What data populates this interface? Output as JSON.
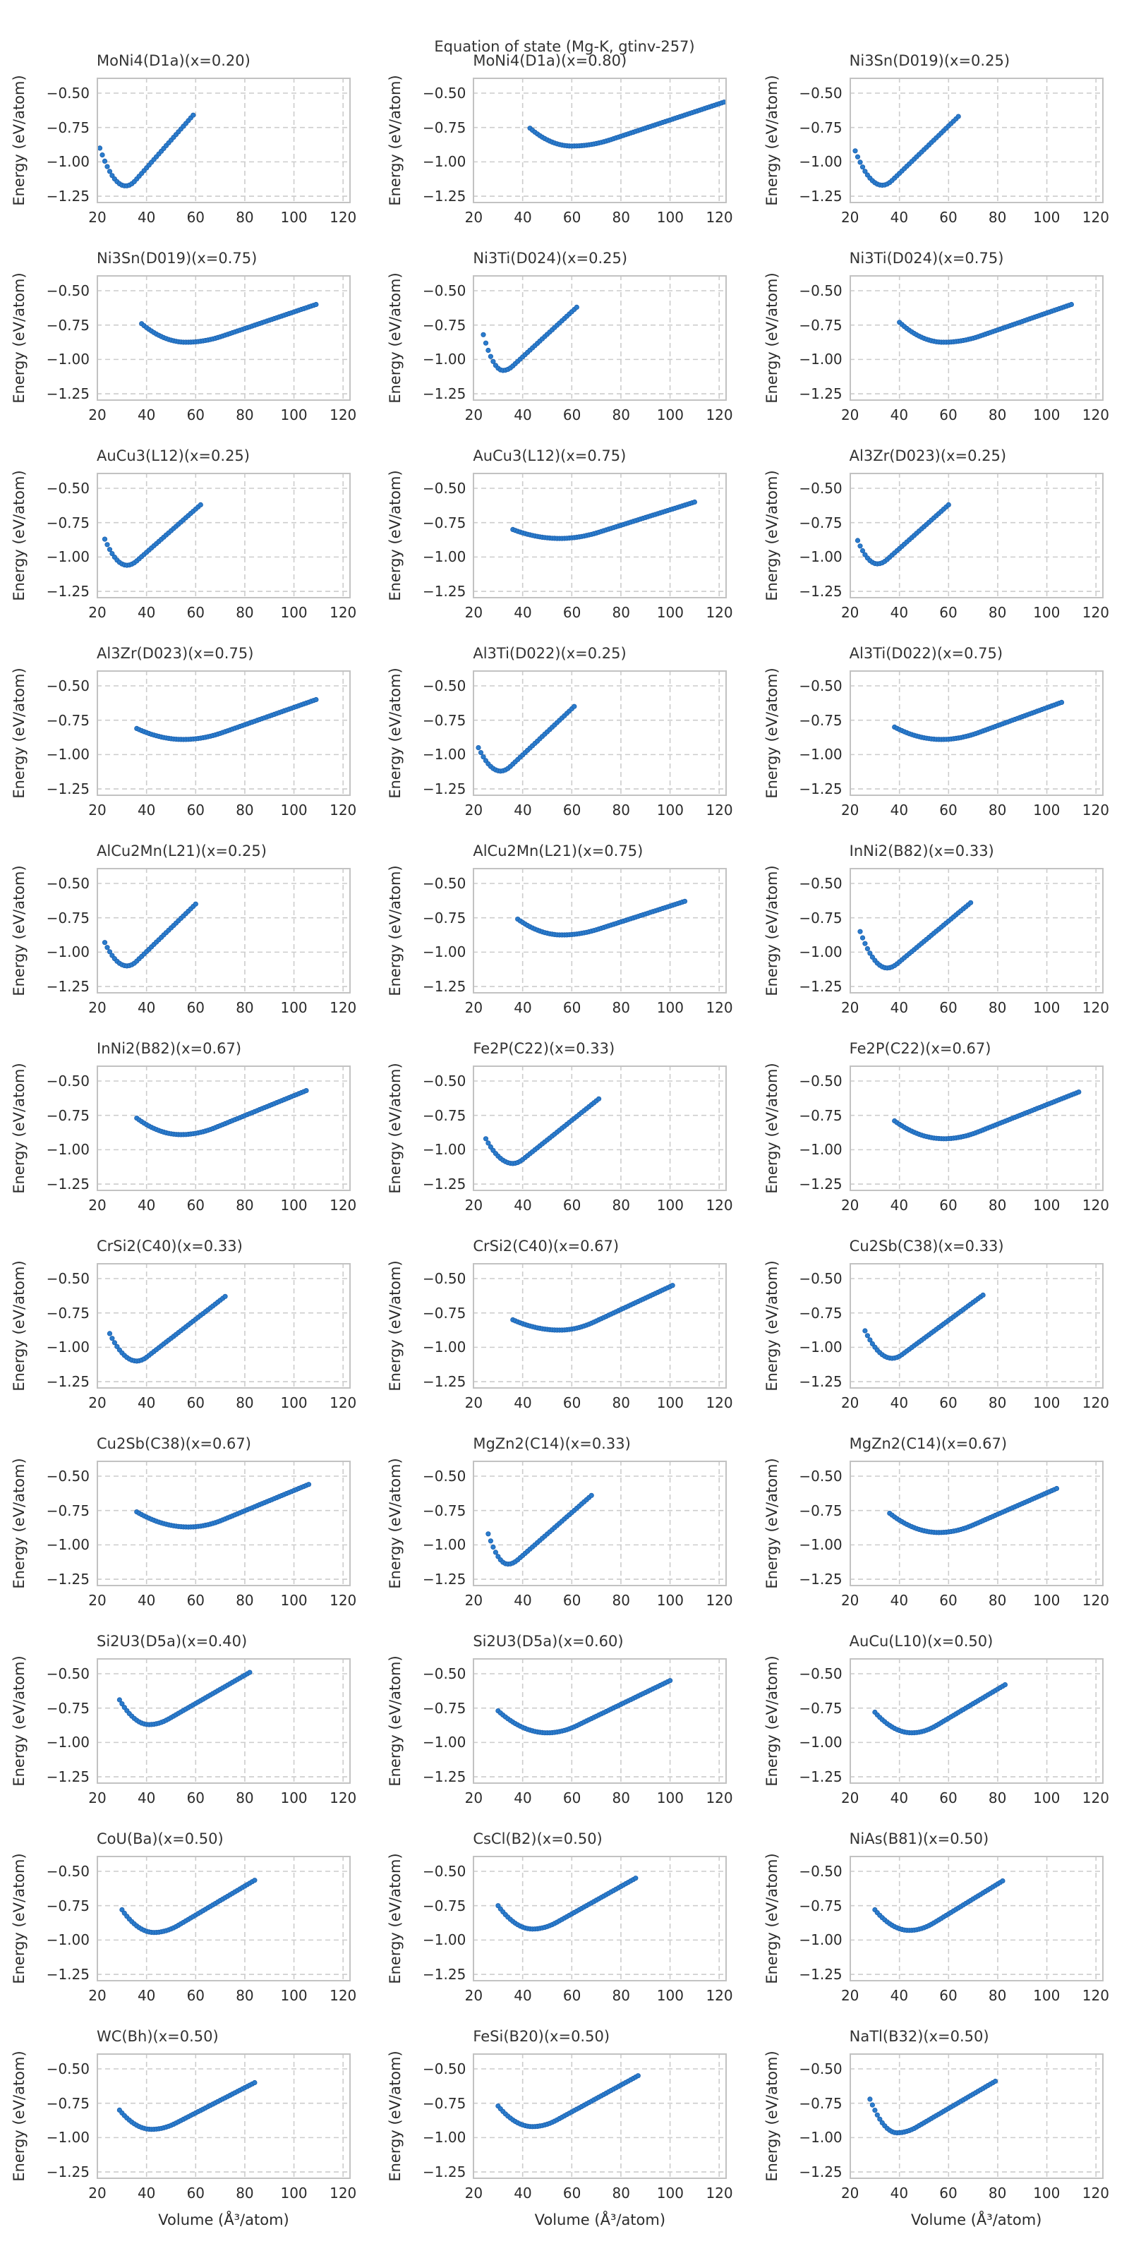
{
  "figure": {
    "suptitle": "Equation of state (Mg-K, gtinv-257)",
    "xlabel": "Volume (Å³/atom)",
    "ylabel": "Energy (eV/atom)",
    "colors": {
      "marker_fill": "#2b7ccc",
      "marker_edge": "#1a5fae",
      "grid": "#cccccc",
      "spine": "#c2c2c2",
      "text": "#2b2b2b",
      "background": "#ffffff"
    },
    "marker_radius": 3.2
  },
  "chart_data": {
    "type": "scatter",
    "grid": "dashed",
    "columns": 3,
    "rows": 11,
    "xlabel": "Volume (Å³/atom)",
    "ylabel": "Energy (eV/atom)",
    "xlim": [
      19.7,
      123.1
    ],
    "ylim": [
      -1.301,
      -0.387
    ],
    "x_ticks": [
      20,
      40,
      60,
      80,
      100,
      120
    ],
    "x_tick_labels": [
      "20",
      "40",
      "60",
      "80",
      "100",
      "120"
    ],
    "y_ticks": [
      -0.5,
      -0.75,
      -1.0,
      -1.25
    ],
    "y_tick_labels": [
      "−0.50",
      "−0.75",
      "−1.00",
      "−1.25"
    ],
    "v_step": 1,
    "subplots": [
      {
        "title": "MoNi4(D1a)(x=0.20)",
        "v_start": 21,
        "v_min": 31.5,
        "v_end": 59,
        "e_start": -0.9,
        "e_min": -1.175,
        "e_end": -0.66,
        "flat_w": 4
      },
      {
        "title": "MoNi4(D1a)(x=0.80)",
        "v_start": 43,
        "v_min": 60,
        "v_end": 122,
        "e_start": -0.755,
        "e_min": -0.885,
        "e_end": -0.565,
        "flat_w": 16
      },
      {
        "title": "Ni3Sn(D019)(x=0.25)",
        "v_start": 22,
        "v_min": 33,
        "v_end": 64,
        "e_start": -0.92,
        "e_min": -1.17,
        "e_end": -0.67,
        "flat_w": 4
      },
      {
        "title": "Ni3Sn(D019)(x=0.75)",
        "v_start": 38,
        "v_min": 56,
        "v_end": 109,
        "e_start": -0.74,
        "e_min": -0.875,
        "e_end": -0.6,
        "flat_w": 15
      },
      {
        "title": "Ni3Ti(D024)(x=0.25)",
        "v_start": 24,
        "v_min": 32,
        "v_end": 62,
        "e_start": -0.82,
        "e_min": -1.08,
        "e_end": -0.62,
        "flat_w": 4
      },
      {
        "title": "Ni3Ti(D024)(x=0.75)",
        "v_start": 40,
        "v_min": 58,
        "v_end": 110,
        "e_start": -0.73,
        "e_min": -0.875,
        "e_end": -0.6,
        "flat_w": 15
      },
      {
        "title": "AuCu3(L12)(x=0.25)",
        "v_start": 23,
        "v_min": 32,
        "v_end": 62,
        "e_start": -0.87,
        "e_min": -1.06,
        "e_end": -0.62,
        "flat_w": 4
      },
      {
        "title": "AuCu3(L12)(x=0.75)",
        "v_start": 36,
        "v_min": 55,
        "v_end": 110,
        "e_start": -0.8,
        "e_min": -0.865,
        "e_end": -0.6,
        "flat_w": 16
      },
      {
        "title": "Al3Zr(D023)(x=0.25)",
        "v_start": 23,
        "v_min": 31,
        "v_end": 60,
        "e_start": -0.88,
        "e_min": -1.05,
        "e_end": -0.62,
        "flat_w": 4
      },
      {
        "title": "Al3Zr(D023)(x=0.75)",
        "v_start": 36,
        "v_min": 55,
        "v_end": 109,
        "e_start": -0.81,
        "e_min": -0.89,
        "e_end": -0.6,
        "flat_w": 16
      },
      {
        "title": "Al3Ti(D022)(x=0.25)",
        "v_start": 22,
        "v_min": 31,
        "v_end": 61,
        "e_start": -0.95,
        "e_min": -1.12,
        "e_end": -0.65,
        "flat_w": 4
      },
      {
        "title": "Al3Ti(D022)(x=0.75)",
        "v_start": 38,
        "v_min": 57,
        "v_end": 106,
        "e_start": -0.8,
        "e_min": -0.89,
        "e_end": -0.62,
        "flat_w": 15
      },
      {
        "title": "AlCu2Mn(L21)(x=0.25)",
        "v_start": 23,
        "v_min": 32,
        "v_end": 60,
        "e_start": -0.93,
        "e_min": -1.1,
        "e_end": -0.65,
        "flat_w": 4
      },
      {
        "title": "AlCu2Mn(L21)(x=0.75)",
        "v_start": 38,
        "v_min": 56,
        "v_end": 106,
        "e_start": -0.76,
        "e_min": -0.875,
        "e_end": -0.63,
        "flat_w": 15
      },
      {
        "title": "InNi2(B82)(x=0.33)",
        "v_start": 24,
        "v_min": 35,
        "v_end": 69,
        "e_start": -0.85,
        "e_min": -1.115,
        "e_end": -0.64,
        "flat_w": 4
      },
      {
        "title": "InNi2(B82)(x=0.67)",
        "v_start": 36,
        "v_min": 54,
        "v_end": 105,
        "e_start": -0.77,
        "e_min": -0.89,
        "e_end": -0.57,
        "flat_w": 14
      },
      {
        "title": "Fe2P(C22)(x=0.33)",
        "v_start": 25,
        "v_min": 36,
        "v_end": 71,
        "e_start": -0.92,
        "e_min": -1.1,
        "e_end": -0.63,
        "flat_w": 4
      },
      {
        "title": "Fe2P(C22)(x=0.67)",
        "v_start": 38,
        "v_min": 58,
        "v_end": 113,
        "e_start": -0.79,
        "e_min": -0.92,
        "e_end": -0.58,
        "flat_w": 14
      },
      {
        "title": "CrSi2(C40)(x=0.33)",
        "v_start": 25,
        "v_min": 36,
        "v_end": 72,
        "e_start": -0.9,
        "e_min": -1.1,
        "e_end": -0.63,
        "flat_w": 4
      },
      {
        "title": "CrSi2(C40)(x=0.67)",
        "v_start": 36,
        "v_min": 55,
        "v_end": 101,
        "e_start": -0.8,
        "e_min": -0.875,
        "e_end": -0.55,
        "flat_w": 14
      },
      {
        "title": "Cu2Sb(C38)(x=0.33)",
        "v_start": 26,
        "v_min": 37,
        "v_end": 74,
        "e_start": -0.88,
        "e_min": -1.08,
        "e_end": -0.62,
        "flat_w": 4
      },
      {
        "title": "Cu2Sb(C38)(x=0.67)",
        "v_start": 36,
        "v_min": 57,
        "v_end": 106,
        "e_start": -0.76,
        "e_min": -0.87,
        "e_end": -0.56,
        "flat_w": 14
      },
      {
        "title": "MgZn2(C14)(x=0.33)",
        "v_start": 26,
        "v_min": 34,
        "v_end": 68,
        "e_start": -0.92,
        "e_min": -1.14,
        "e_end": -0.64,
        "flat_w": 4
      },
      {
        "title": "MgZn2(C14)(x=0.67)",
        "v_start": 36,
        "v_min": 56,
        "v_end": 104,
        "e_start": -0.77,
        "e_min": -0.91,
        "e_end": -0.59,
        "flat_w": 14
      },
      {
        "title": "Si2U3(D5a)(x=0.40)",
        "v_start": 29,
        "v_min": 41,
        "v_end": 82,
        "e_start": -0.69,
        "e_min": -0.87,
        "e_end": -0.49,
        "flat_w": 8
      },
      {
        "title": "Si2U3(D5a)(x=0.60)",
        "v_start": 30,
        "v_min": 50,
        "v_end": 100,
        "e_start": -0.77,
        "e_min": -0.93,
        "e_end": -0.55,
        "flat_w": 12
      },
      {
        "title": "AuCu(L10)(x=0.50)",
        "v_start": 30,
        "v_min": 45,
        "v_end": 83,
        "e_start": -0.78,
        "e_min": -0.93,
        "e_end": -0.58,
        "flat_w": 10
      },
      {
        "title": "CoU(Ba)(x=0.50)",
        "v_start": 30,
        "v_min": 43,
        "v_end": 84,
        "e_start": -0.78,
        "e_min": -0.945,
        "e_end": -0.565,
        "flat_w": 10
      },
      {
        "title": "CsCl(B2)(x=0.50)",
        "v_start": 30,
        "v_min": 44,
        "v_end": 86,
        "e_start": -0.75,
        "e_min": -0.92,
        "e_end": -0.55,
        "flat_w": 10
      },
      {
        "title": "NiAs(B81)(x=0.50)",
        "v_start": 30,
        "v_min": 44,
        "v_end": 82,
        "e_start": -0.78,
        "e_min": -0.93,
        "e_end": -0.57,
        "flat_w": 10
      },
      {
        "title": "WC(Bh)(x=0.50)",
        "v_start": 29,
        "v_min": 42,
        "v_end": 84,
        "e_start": -0.8,
        "e_min": -0.94,
        "e_end": -0.6,
        "flat_w": 10
      },
      {
        "title": "FeSi(B20)(x=0.50)",
        "v_start": 30,
        "v_min": 44,
        "v_end": 87,
        "e_start": -0.77,
        "e_min": -0.92,
        "e_end": -0.55,
        "flat_w": 10
      },
      {
        "title": "NaTl(B32)(x=0.50)",
        "v_start": 28,
        "v_min": 39,
        "v_end": 79,
        "e_start": -0.72,
        "e_min": -0.965,
        "e_end": -0.59,
        "flat_w": 8
      }
    ]
  }
}
